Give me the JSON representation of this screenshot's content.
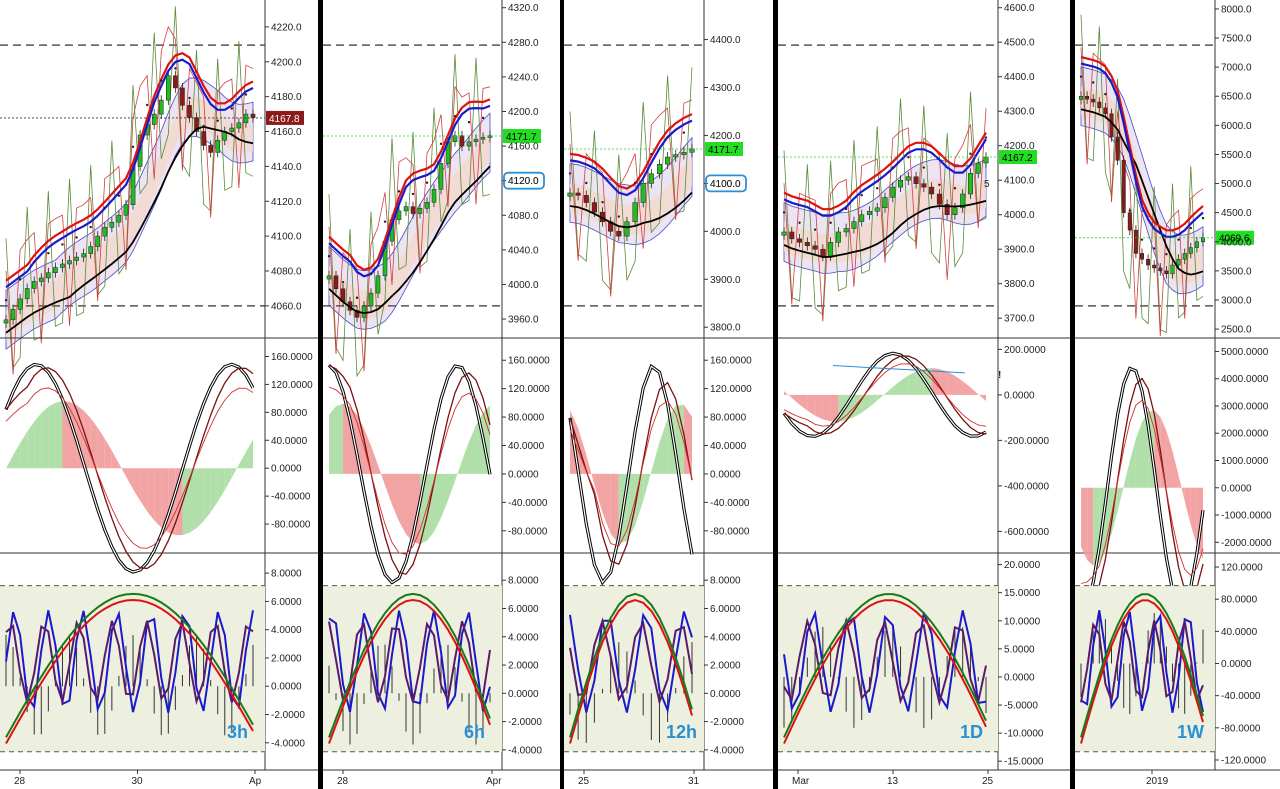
{
  "colors": {
    "up": "#22bb22",
    "down": "#8b1a1a",
    "sma_black": "#000000",
    "red_line": "#dd1111",
    "blue_line": "#1a1acc",
    "green_line": "#3a7a1a",
    "band_fill": "#f3d9cf",
    "purple_fill": "#ece4f3",
    "annotation": "#2b8fd6",
    "osc_green": "#a8dca0",
    "osc_red": "#f19a9a",
    "stoch_fill": "#eef0df"
  },
  "chart_data": [
    {
      "type": "candlestick",
      "timeframe": "3h",
      "x_tick_labels": [
        "28",
        "30",
        "Ap"
      ],
      "price_axis": {
        "ticks": [
          "4220.0",
          "4200.0",
          "4180.0",
          "4160.0",
          "4140.0",
          "4120.0",
          "4100.0",
          "4080.0",
          "4060.0"
        ],
        "range": [
          4045,
          4232
        ]
      },
      "last_price": "4167.8",
      "last_price_color": "#8b1a1a",
      "close": [
        4052,
        4058,
        4064,
        4070,
        4074,
        4076,
        4079,
        4082,
        4084,
        4086,
        4088,
        4090,
        4094,
        4100,
        4105,
        4108,
        4112,
        4118,
        4140,
        4158,
        4164,
        4170,
        4178,
        4192,
        4185,
        4175,
        4168,
        4160,
        4152,
        4148,
        4155,
        4160,
        4162,
        4165,
        4170,
        4168
      ],
      "osc_axis": {
        "ticks": [
          "160.0000",
          "120.0000",
          "80.0000",
          "40.0000",
          "0.0000",
          "-40.0000",
          "-80.0000"
        ],
        "range": [
          -110,
          175
        ]
      },
      "stoch_axis": {
        "ticks": [
          "8.0000",
          "6.0000",
          "4.0000",
          "2.0000",
          "0.0000",
          "-2.0000",
          "-4.0000"
        ],
        "range": [
          -5.5,
          9
        ]
      }
    },
    {
      "type": "candlestick",
      "timeframe": "6h",
      "x_tick_labels": [
        "28",
        "Apr"
      ],
      "price_axis": {
        "ticks": [
          "4320.0",
          "4280.0",
          "4240.0",
          "4200.0",
          "4160.0",
          "4120.0",
          "4080.0",
          "4040.0",
          "4000.0",
          "3960.0"
        ],
        "range": [
          3945,
          4322
        ]
      },
      "last_price": "4171.7",
      "last_price_color": "#22dd22",
      "annotation_price": "4120.0",
      "close": [
        4010,
        3995,
        3980,
        3970,
        3962,
        3975,
        3990,
        4010,
        4050,
        4075,
        4085,
        4090,
        4082,
        4088,
        4095,
        4110,
        4140,
        4165,
        4172,
        4160,
        4165,
        4168,
        4170,
        4172
      ],
      "osc_axis": {
        "ticks": [
          "160.0000",
          "120.0000",
          "80.0000",
          "40.0000",
          "0.0000",
          "-40.0000",
          "-80.0000"
        ],
        "range": [
          -100,
          180
        ]
      },
      "stoch_axis": {
        "ticks": [
          "8.0000",
          "6.0000",
          "4.0000",
          "2.0000",
          "0.0000",
          "-2.0000",
          "-4.0000"
        ],
        "range": [
          -5,
          9.5
        ]
      }
    },
    {
      "type": "candlestick",
      "timeframe": "12h",
      "x_tick_labels": [
        "25",
        "31"
      ],
      "price_axis": {
        "ticks": [
          "4400.0",
          "4300.0",
          "4200.0",
          "4100.0",
          "4000.0",
          "3900.0",
          "3800.0"
        ],
        "range": [
          3790,
          4470
        ]
      },
      "last_price": "4171.7",
      "last_price_color": "#22dd22",
      "annotation_price": "4100.0",
      "close": [
        4080,
        4075,
        4060,
        4040,
        4020,
        4000,
        3990,
        4020,
        4060,
        4100,
        4120,
        4140,
        4155,
        4160,
        4165,
        4172
      ],
      "osc_axis": {
        "ticks": [
          "160.0000",
          "120.0000",
          "80.0000",
          "40.0000",
          "0.0000",
          "-40.0000",
          "-80.0000"
        ],
        "range": [
          -100,
          180
        ]
      },
      "stoch_axis": {
        "ticks": [
          "8.0000",
          "6.0000",
          "4.0000",
          "2.0000",
          "0.0000",
          "-2.0000",
          "-4.0000"
        ],
        "range": [
          -5,
          9.5
        ]
      }
    },
    {
      "type": "candlestick",
      "timeframe": "1D",
      "x_tick_labels": [
        "Mar",
        "13",
        "25"
      ],
      "price_axis": {
        "ticks": [
          "4600.0",
          "4500.0",
          "4400.0",
          "4300.0",
          "4200.0",
          "4100.0",
          "4000.0",
          "3900.0",
          "3800.0",
          "3700.0"
        ],
        "range": [
          3660,
          4605
        ]
      },
      "last_price": "4167.2",
      "last_price_color": "#22dd22",
      "annotation_marker": "5",
      "close": [
        3950,
        3930,
        3920,
        3910,
        3900,
        3880,
        3920,
        3950,
        3960,
        3980,
        4000,
        4010,
        4020,
        4050,
        4080,
        4100,
        4110,
        4090,
        4080,
        4060,
        4030,
        4000,
        4020,
        4060,
        4120,
        4150,
        4167
      ],
      "osc_axis": {
        "ticks": [
          "200.0000",
          "0.0000",
          "-200.0000",
          "-400.0000",
          "-600.0000"
        ],
        "range": [
          -660,
          215
        ]
      },
      "osc_annotation": "!",
      "stoch_axis": {
        "ticks": [
          "20.0000",
          "15.0000",
          "10.0000",
          "5.0000",
          "0.0000",
          "-5.0000",
          "-10.0000",
          "-15.0000"
        ],
        "range": [
          -15.5,
          21
        ]
      }
    },
    {
      "type": "candlestick",
      "timeframe": "1W",
      "x_tick_labels": [
        "2019"
      ],
      "price_axis": {
        "ticks": [
          "8000.0",
          "7500.0",
          "7000.0",
          "6500.0",
          "6000.0",
          "5500.0",
          "5000.0",
          "4500.0",
          "4000.0",
          "3500.0",
          "3000.0",
          "2500.0"
        ],
        "range": [
          2450,
          8050
        ]
      },
      "last_price": "4069.6",
      "last_price_color": "#22dd22",
      "close": [
        6500,
        6450,
        6400,
        6300,
        6200,
        5800,
        5400,
        4500,
        4200,
        3800,
        3700,
        3600,
        3550,
        3500,
        3450,
        3600,
        3700,
        3800,
        3900,
        4000,
        4070
      ],
      "osc_axis": {
        "ticks": [
          "5000.0000",
          "4000.0000",
          "3000.0000",
          "2000.0000",
          "1000.0000",
          "0.0000",
          "-1000.0000",
          "-2000.0000"
        ],
        "range": [
          -2100,
          5200
        ]
      },
      "stoch_axis": {
        "ticks": [
          "120.0000",
          "80.0000",
          "40.0000",
          "0.0000",
          "-40.0000",
          "-80.0000",
          "-120.0000"
        ],
        "range": [
          -125,
          130
        ]
      }
    }
  ]
}
